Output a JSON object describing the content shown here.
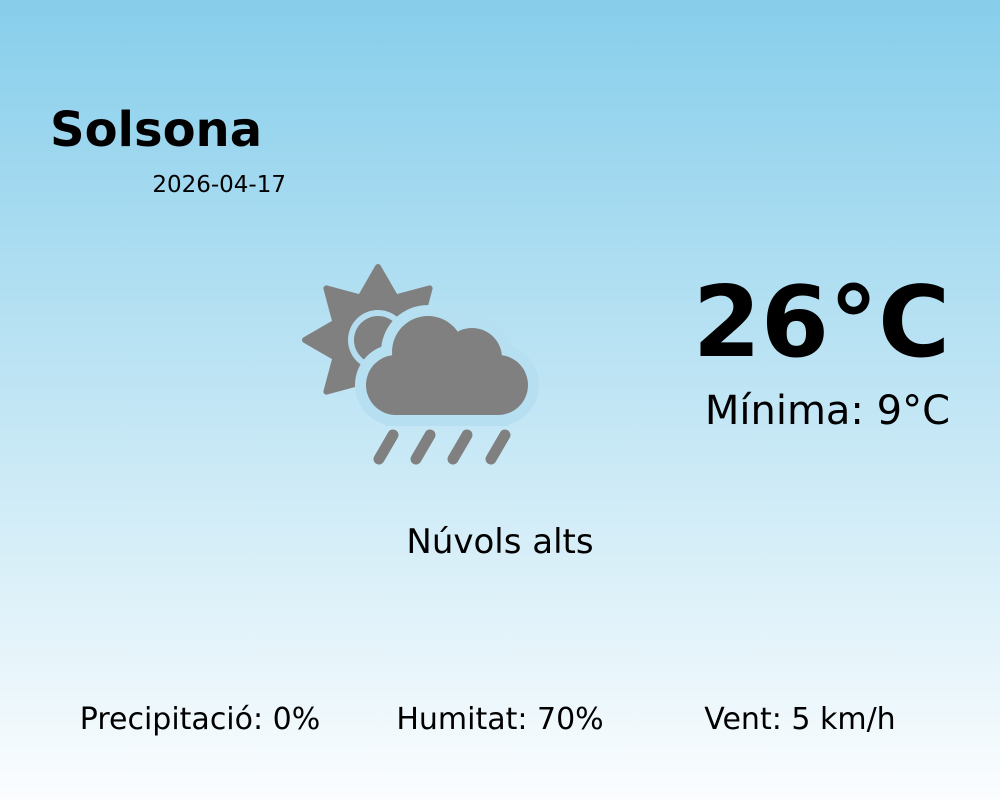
{
  "location": {
    "city": "Solsona",
    "date": "2026-04-17"
  },
  "current": {
    "temperature": "26°C",
    "minimum": "Mínima: 9°C",
    "condition": "Núvols alts",
    "icon": "partly-cloudy-rain-icon",
    "icon_color": "#808080"
  },
  "stats": {
    "precipitation": "Precipitació: 0%",
    "humidity": "Humitat: 70%",
    "wind": "Vent: 5 km/h"
  },
  "colors": {
    "background_top": "#87ceeb",
    "background_bottom": "#fbfdfe"
  }
}
